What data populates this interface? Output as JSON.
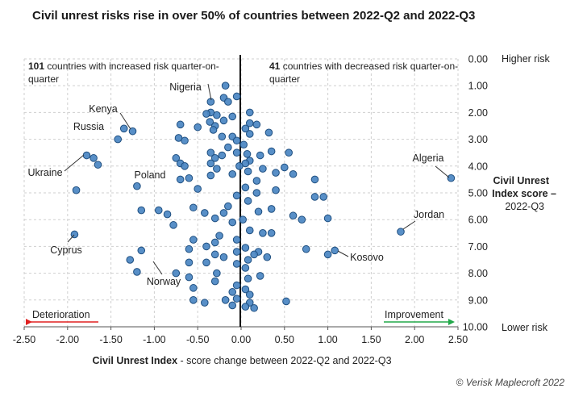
{
  "chart_data": {
    "type": "scatter",
    "title": "Civil unrest risks rise in over 50% of countries between 2022-Q2 and 2022-Q3",
    "xlabel_bold": "Civil Unrest Index",
    "xlabel_rest": " - score change between 2022-Q2 and 2022-Q3",
    "ylabel_lines": [
      "Civil Unrest",
      "Index score –",
      "2022-Q3"
    ],
    "xlim": [
      -2.5,
      2.5
    ],
    "ylim": [
      0,
      10
    ],
    "y_inverted": true,
    "x_ticks": [
      "-2.50",
      "-2.00",
      "-1.50",
      "-1.00",
      "-0.50",
      "0.00",
      "0.50",
      "1.00",
      "1.50",
      "2.00",
      "2.50"
    ],
    "y_ticks": [
      "0.00",
      "1.00",
      "2.00",
      "3.00",
      "4.00",
      "5.00",
      "6.00",
      "7.00",
      "8.00",
      "9.00",
      "10.00"
    ],
    "y_top_label": "Higher risk",
    "y_bottom_label": "Lower risk",
    "left_note": {
      "count": "101",
      "text": " countries with increased risk quarter-on-",
      "text2": "quarter"
    },
    "right_note": {
      "count": "41",
      "text": " countries with decreased risk quarter-on-",
      "text2": "quarter"
    },
    "deterioration_label": "Deterioration",
    "improvement_label": "Improvement",
    "labeled_points": [
      {
        "name": "Nigeria",
        "x": -0.35,
        "y": 1.6
      },
      {
        "name": "Kenya",
        "x": -1.25,
        "y": 2.7
      },
      {
        "name": "Russia",
        "x": -1.42,
        "y": 3.0
      },
      {
        "name": "Ukraine",
        "x": -1.78,
        "y": 3.6
      },
      {
        "name": "Poland",
        "x": -0.7,
        "y": 4.5
      },
      {
        "name": "Cyprus",
        "x": -1.92,
        "y": 6.55
      },
      {
        "name": "Norway",
        "x": -1.28,
        "y": 7.5
      },
      {
        "name": "Algeria",
        "x": 2.42,
        "y": 4.45
      },
      {
        "name": "Jordan",
        "x": 1.84,
        "y": 6.45
      },
      {
        "name": "Kosovo",
        "x": 1.08,
        "y": 7.15
      }
    ],
    "points": [
      [
        -0.28,
        2.1
      ],
      [
        -0.18,
        1.0
      ],
      [
        -0.2,
        1.45
      ],
      [
        -0.15,
        1.6
      ],
      [
        -0.05,
        1.4
      ],
      [
        -0.35,
        2.0
      ],
      [
        -0.3,
        2.5
      ],
      [
        -0.2,
        2.3
      ],
      [
        -0.1,
        2.15
      ],
      [
        0.1,
        2.0
      ],
      [
        0.18,
        2.45
      ],
      [
        0.05,
        2.6
      ],
      [
        -0.1,
        2.9
      ],
      [
        -0.05,
        3.05
      ],
      [
        0.03,
        3.2
      ],
      [
        -0.22,
        2.9
      ],
      [
        -0.36,
        2.35
      ],
      [
        -0.32,
        2.65
      ],
      [
        -0.35,
        3.5
      ],
      [
        -0.3,
        3.7
      ],
      [
        -0.35,
        3.9
      ],
      [
        -0.22,
        3.6
      ],
      [
        -0.15,
        3.3
      ],
      [
        -0.05,
        3.5
      ],
      [
        0.07,
        3.55
      ],
      [
        0.1,
        3.8
      ],
      [
        0.22,
        3.6
      ],
      [
        0.35,
        3.45
      ],
      [
        0.55,
        3.5
      ],
      [
        0.05,
        3.9
      ],
      [
        -0.35,
        4.35
      ],
      [
        -0.28,
        4.1
      ],
      [
        -0.1,
        4.3
      ],
      [
        -0.02,
        4.0
      ],
      [
        0.08,
        4.2
      ],
      [
        0.25,
        4.1
      ],
      [
        0.4,
        4.25
      ],
      [
        0.18,
        4.55
      ],
      [
        0.05,
        4.8
      ],
      [
        -0.05,
        5.1
      ],
      [
        0.08,
        5.3
      ],
      [
        -0.15,
        5.5
      ],
      [
        -0.2,
        5.75
      ],
      [
        -0.3,
        5.95
      ],
      [
        -0.42,
        5.75
      ],
      [
        -0.55,
        5.55
      ],
      [
        -0.1,
        6.1
      ],
      [
        0.02,
        6.0
      ],
      [
        0.1,
        6.4
      ],
      [
        -0.05,
        6.75
      ],
      [
        -0.25,
        6.6
      ],
      [
        -0.3,
        6.85
      ],
      [
        -0.4,
        7.0
      ],
      [
        -0.3,
        7.3
      ],
      [
        -0.2,
        7.4
      ],
      [
        -0.05,
        7.2
      ],
      [
        0.05,
        7.05
      ],
      [
        0.08,
        7.5
      ],
      [
        0.2,
        7.2
      ],
      [
        0.3,
        7.4
      ],
      [
        -0.05,
        7.65
      ],
      [
        0.05,
        7.8
      ],
      [
        -0.28,
        8.0
      ],
      [
        -0.3,
        8.3
      ],
      [
        0.08,
        8.2
      ],
      [
        -0.05,
        8.45
      ],
      [
        0.05,
        8.6
      ],
      [
        0.1,
        8.8
      ],
      [
        -0.05,
        8.95
      ],
      [
        0.1,
        9.1
      ],
      [
        -0.18,
        9.0
      ],
      [
        -0.1,
        9.2
      ],
      [
        0.05,
        9.25
      ],
      [
        0.15,
        9.3
      ],
      [
        -0.42,
        9.1
      ],
      [
        -0.1,
        8.7
      ],
      [
        -0.55,
        6.75
      ],
      [
        -0.6,
        7.1
      ],
      [
        -0.5,
        2.55
      ],
      [
        -0.6,
        4.45
      ],
      [
        -0.78,
        6.2
      ],
      [
        -0.85,
        5.8
      ],
      [
        -0.95,
        5.65
      ],
      [
        -1.15,
        5.65
      ],
      [
        -1.2,
        4.75
      ],
      [
        -0.4,
        2.05
      ],
      [
        -0.7,
        2.45
      ],
      [
        -0.72,
        2.95
      ],
      [
        -0.65,
        3.05
      ],
      [
        -0.75,
        3.7
      ],
      [
        -0.7,
        3.9
      ],
      [
        -0.65,
        4.0
      ],
      [
        -0.5,
        4.85
      ],
      [
        -1.15,
        7.15
      ],
      [
        -1.2,
        7.95
      ],
      [
        -0.6,
        7.6
      ],
      [
        -0.6,
        8.15
      ],
      [
        -0.55,
        8.55
      ],
      [
        -0.55,
        9.0
      ],
      [
        -0.4,
        7.6
      ],
      [
        -0.75,
        8.0
      ],
      [
        -1.7,
        3.7
      ],
      [
        -1.65,
        3.95
      ],
      [
        -1.35,
        2.6
      ],
      [
        -1.9,
        4.9
      ],
      [
        0.32,
        2.75
      ],
      [
        0.5,
        4.05
      ],
      [
        0.6,
        4.3
      ],
      [
        0.4,
        4.9
      ],
      [
        0.35,
        5.6
      ],
      [
        0.6,
        5.85
      ],
      [
        0.7,
        6.0
      ],
      [
        0.85,
        4.5
      ],
      [
        0.85,
        5.15
      ],
      [
        0.95,
        5.15
      ],
      [
        0.75,
        7.1
      ],
      [
        1.0,
        5.95
      ],
      [
        1.0,
        7.3
      ],
      [
        0.52,
        9.05
      ],
      [
        0.18,
        5.0
      ],
      [
        0.2,
        5.7
      ],
      [
        0.25,
        6.5
      ],
      [
        0.1,
        2.4
      ],
      [
        0.1,
        2.8
      ],
      [
        0.35,
        6.5
      ],
      [
        0.15,
        7.3
      ],
      [
        0.22,
        8.1
      ]
    ]
  },
  "credit": "© Verisk Maplecroft 2022"
}
